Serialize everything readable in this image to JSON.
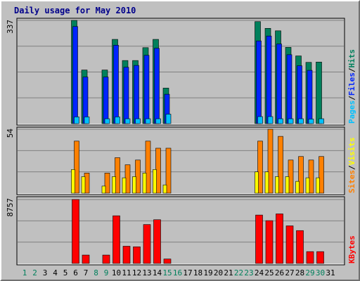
{
  "colors": {
    "background": "#c0c0c0",
    "plot_background": "#c0c0c0",
    "grid": "#808080",
    "title": "#00008b",
    "hits": "#00805c",
    "files": "#0024ff",
    "pages": "#00c0ff",
    "visits": "#ffff00",
    "sites": "#ff8000",
    "kbytes": "#ff0000",
    "weekday_label": "#000000",
    "weekend_label": "#00805c"
  },
  "chart_data": {
    "type": "bar",
    "title": "Daily usage for May 2010",
    "categories": [
      "1",
      "2",
      "3",
      "4",
      "5",
      "6",
      "7",
      "8",
      "9",
      "10",
      "11",
      "12",
      "13",
      "14",
      "15",
      "16",
      "17",
      "18",
      "19",
      "20",
      "21",
      "22",
      "23",
      "24",
      "25",
      "26",
      "27",
      "28",
      "29",
      "30",
      "31"
    ],
    "weekend_days": [
      "1",
      "2",
      "8",
      "9",
      "15",
      "16",
      "22",
      "23",
      "29",
      "30"
    ],
    "panels": [
      {
        "id": "hits-files-pages",
        "max_label": "337",
        "ymax": 337,
        "legend": [
          {
            "text": "Pages",
            "color_key": "pages"
          },
          {
            "text": "/",
            "color_key": "separator"
          },
          {
            "text": "Files",
            "color_key": "files"
          },
          {
            "text": "/",
            "color_key": "separator"
          },
          {
            "text": "Hits",
            "color_key": "hits"
          }
        ],
        "series": [
          {
            "name": "Hits",
            "color_key": "hits",
            "values": [
              0,
              0,
              0,
              0,
              0,
              337,
              175,
              0,
              175,
              275,
              206,
              206,
              248,
              275,
              116,
              0,
              0,
              0,
              0,
              0,
              0,
              0,
              0,
              333,
              311,
              303,
              249,
              221,
              200,
              201,
              0
            ]
          },
          {
            "name": "Files",
            "color_key": "files",
            "values": [
              0,
              0,
              0,
              0,
              0,
              317,
              152,
              0,
              152,
              256,
              184,
              190,
              223,
              246,
              96,
              0,
              0,
              0,
              0,
              0,
              0,
              0,
              0,
              270,
              286,
              260,
              225,
              189,
              174,
              0,
              0
            ]
          },
          {
            "name": "Pages",
            "color_key": "pages",
            "values": [
              0,
              0,
              0,
              0,
              0,
              22,
              22,
              0,
              16,
              22,
              16,
              16,
              16,
              16,
              31,
              0,
              0,
              0,
              0,
              0,
              0,
              0,
              0,
              23,
              23,
              16,
              16,
              16,
              15,
              16,
              0
            ]
          }
        ]
      },
      {
        "id": "sites-visits",
        "max_label": "54",
        "ymax": 54,
        "legend": [
          {
            "text": "Sites",
            "color_key": "sites"
          },
          {
            "text": "/",
            "color_key": "separator"
          },
          {
            "text": "Visits",
            "color_key": "visits"
          }
        ],
        "series": [
          {
            "name": "Sites",
            "color_key": "sites",
            "values": [
              0,
              0,
              0,
              0,
              0,
              44,
              17,
              0,
              17,
              30,
              24,
              28,
              44,
              38,
              38,
              0,
              0,
              0,
              0,
              0,
              0,
              0,
              0,
              44,
              54,
              48,
              28,
              31,
              28,
              31,
              0
            ]
          },
          {
            "name": "Visits",
            "color_key": "visits",
            "values": [
              0,
              0,
              0,
              0,
              0,
              20,
              14,
              0,
              6,
              14,
              13,
              14,
              17,
              20,
              7,
              0,
              0,
              0,
              0,
              0,
              0,
              0,
              0,
              18,
              18,
              14,
              14,
              10,
              13,
              13,
              0
            ]
          }
        ]
      },
      {
        "id": "kbytes",
        "max_label": "8757",
        "ymax": 8757,
        "legend": [
          {
            "text": "KBytes",
            "color_key": "kbytes"
          }
        ],
        "series": [
          {
            "name": "KBytes",
            "color_key": "kbytes",
            "values": [
              0,
              0,
              0,
              0,
              0,
              8757,
              1150,
              0,
              1150,
              6530,
              2360,
              2280,
              5330,
              5990,
              610,
              0,
              0,
              0,
              0,
              0,
              0,
              0,
              0,
              6630,
              5860,
              6790,
              5150,
              4500,
              1620,
              1620,
              0
            ]
          }
        ]
      }
    ]
  }
}
